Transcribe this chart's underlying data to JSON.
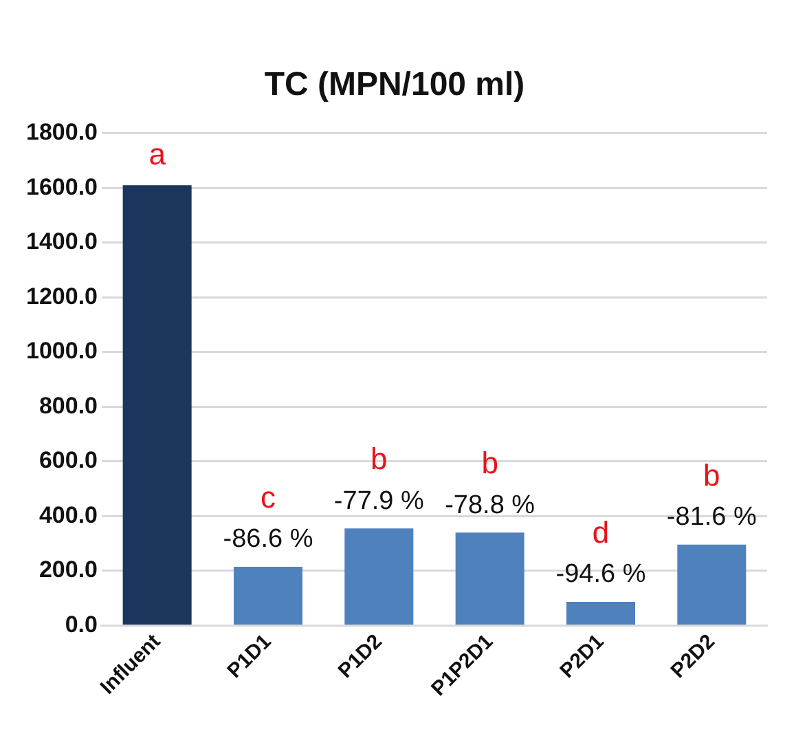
{
  "chart_data": {
    "type": "bar",
    "title": "TC (MPN/100 ml)",
    "categories": [
      "Influent",
      "P1D1",
      "P1D2",
      "P1P2D1",
      "P2D1",
      "P2D2"
    ],
    "values": [
      1610,
      215,
      355,
      340,
      87,
      296
    ],
    "colors": [
      "#1b365d",
      "#4f81bd",
      "#4f81bd",
      "#4f81bd",
      "#4f81bd",
      "#4f81bd"
    ],
    "ylim": [
      0,
      1800
    ],
    "yticks": [
      {
        "value": 0,
        "label": "0.0"
      },
      {
        "value": 200,
        "label": "200.0"
      },
      {
        "value": 400,
        "label": "400.0"
      },
      {
        "value": 600,
        "label": "600.0"
      },
      {
        "value": 800,
        "label": "800.0"
      },
      {
        "value": 1000,
        "label": "1000.0"
      },
      {
        "value": 1200,
        "label": "1200.0"
      },
      {
        "value": 1400,
        "label": "1400.0"
      },
      {
        "value": 1600,
        "label": "1600.0"
      },
      {
        "value": 1800,
        "label": "1800.0"
      }
    ],
    "grid": "y",
    "legend": false,
    "annotations": [
      {
        "text": "a",
        "x": "Influent",
        "y": 1610
      },
      {
        "text": "-86.6 %",
        "x": "P1D1",
        "y": 215
      },
      {
        "text": "c",
        "x": "P1D1",
        "y": 215
      },
      {
        "text": "-77.9 %",
        "x": "P1D2",
        "y": 355
      },
      {
        "text": "b",
        "x": "P1D2",
        "y": 355
      },
      {
        "text": "-78.8 %",
        "x": "P1P2D1",
        "y": 340
      },
      {
        "text": "b",
        "x": "P1P2D1",
        "y": 340
      },
      {
        "text": "-94.6 %",
        "x": "P2D1",
        "y": 87
      },
      {
        "text": "d",
        "x": "P2D1",
        "y": 87
      },
      {
        "text": "-81.6 %",
        "x": "P2D2",
        "y": 296
      },
      {
        "text": "b",
        "x": "P2D2",
        "y": 296
      }
    ]
  }
}
